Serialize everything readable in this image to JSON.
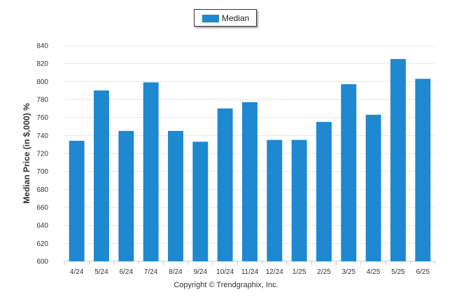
{
  "chart_data": {
    "type": "bar",
    "categories": [
      "4/24",
      "5/24",
      "6/24",
      "7/24",
      "8/24",
      "9/24",
      "10/24",
      "11/24",
      "12/24",
      "1/25",
      "2/25",
      "3/25",
      "4/25",
      "5/25",
      "6/25"
    ],
    "series": [
      {
        "name": "Median",
        "values": [
          734,
          790,
          745,
          799,
          745,
          733,
          770,
          777,
          735,
          735,
          755,
          797,
          763,
          825,
          803
        ]
      }
    ],
    "ylabel": "Median Price (in $,000) %",
    "xlabel": "",
    "ylim": [
      600,
      840
    ],
    "yticks": [
      600,
      620,
      640,
      660,
      680,
      700,
      720,
      740,
      760,
      780,
      800,
      820,
      840
    ],
    "grid": true,
    "legend_position": "top-center",
    "bar_color": "#1e88d0"
  },
  "legend": {
    "label": "Median"
  },
  "footer": {
    "copyright": "Copyright © Trendgraphix, Inc."
  }
}
